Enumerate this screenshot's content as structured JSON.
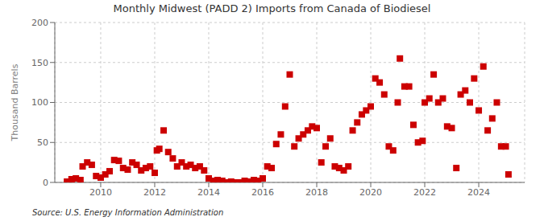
{
  "chart_data": {
    "type": "scatter",
    "title": "Monthly Midwest (PADD 2) Imports from Canada of Biodiesel",
    "ylabel": "Thousand Barrels",
    "annotation": "Source: U.S. Energy Information Administration",
    "color": "#cc0000",
    "marker": "square",
    "grid": true,
    "xlim": [
      2008.3,
      2025.7
    ],
    "xticks": [
      2010,
      2012,
      2014,
      2016,
      2018,
      2020,
      2022,
      2024
    ],
    "ylim": [
      0,
      200
    ],
    "yticks": [
      0,
      50,
      100,
      150,
      200
    ],
    "x": [
      2008.75,
      2008.92,
      2009.08,
      2009.25,
      2009.33,
      2009.5,
      2009.67,
      2009.83,
      2010.0,
      2010.17,
      2010.33,
      2010.5,
      2010.67,
      2010.83,
      2011.0,
      2011.17,
      2011.33,
      2011.5,
      2011.67,
      2011.83,
      2012.0,
      2012.08,
      2012.17,
      2012.33,
      2012.5,
      2012.67,
      2012.83,
      2013.0,
      2013.17,
      2013.33,
      2013.5,
      2013.67,
      2013.83,
      2014.0,
      2014.17,
      2014.33,
      2014.5,
      2014.67,
      2014.83,
      2015.0,
      2015.17,
      2015.33,
      2015.5,
      2015.67,
      2015.83,
      2016.0,
      2016.17,
      2016.33,
      2016.5,
      2016.67,
      2016.83,
      2017.0,
      2017.17,
      2017.33,
      2017.5,
      2017.67,
      2017.83,
      2018.0,
      2018.17,
      2018.33,
      2018.5,
      2018.67,
      2018.83,
      2019.0,
      2019.17,
      2019.33,
      2019.5,
      2019.67,
      2019.83,
      2020.0,
      2020.17,
      2020.33,
      2020.5,
      2020.67,
      2020.83,
      2021.0,
      2021.08,
      2021.25,
      2021.42,
      2021.58,
      2021.75,
      2021.92,
      2022.0,
      2022.17,
      2022.33,
      2022.5,
      2022.67,
      2022.83,
      2023.0,
      2023.17,
      2023.33,
      2023.5,
      2023.67,
      2023.83,
      2024.0,
      2024.17,
      2024.33,
      2024.5,
      2024.67,
      2024.83,
      2025.0,
      2025.1
    ],
    "values": [
      1,
      4,
      5,
      3,
      20,
      25,
      22,
      8,
      6,
      10,
      14,
      28,
      27,
      18,
      16,
      25,
      22,
      15,
      18,
      20,
      12,
      40,
      42,
      65,
      38,
      30,
      20,
      25,
      20,
      22,
      18,
      20,
      15,
      5,
      2,
      3,
      2,
      0,
      1,
      0,
      0,
      2,
      1,
      3,
      2,
      5,
      20,
      18,
      48,
      60,
      95,
      135,
      45,
      55,
      60,
      65,
      70,
      68,
      25,
      45,
      55,
      20,
      18,
      15,
      20,
      65,
      75,
      85,
      90,
      95,
      130,
      125,
      110,
      45,
      40,
      100,
      155,
      120,
      120,
      72,
      50,
      52,
      100,
      105,
      135,
      100,
      105,
      70,
      68,
      18,
      110,
      115,
      100,
      130,
      90,
      145,
      65,
      80,
      100,
      45,
      45,
      10
    ]
  }
}
